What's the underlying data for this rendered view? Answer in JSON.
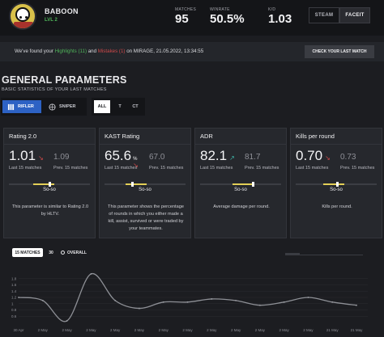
{
  "header": {
    "username": "BABOON",
    "level": "LVL 2",
    "stats": [
      {
        "label": "MATCHES",
        "value": "95"
      },
      {
        "label": "WINRATE",
        "value": "50.5%"
      },
      {
        "label": "K/D",
        "value": "1.03"
      }
    ],
    "steam_label": "STEAM",
    "faceit_label": "FACEIT"
  },
  "notice": {
    "prefix": "We've found your ",
    "highlights": "Highlights (11)",
    "and": " and ",
    "mistakes": "Mistakes (1)",
    "suffix": " on MIRAGE, 21.05.2022, 13:34:55",
    "button": "CHECK YOUR LAST MATCH"
  },
  "section": {
    "title": "GENERAL PARAMETERS",
    "subtitle": "BASIC STATISTICS OF YOUR LAST MATCHES"
  },
  "filters": {
    "roles": [
      {
        "label": "RIFLER",
        "icon": "rifle-icon"
      },
      {
        "label": "SNIPER",
        "icon": "scope-icon"
      }
    ],
    "sides": [
      "ALL",
      "T",
      "CT"
    ]
  },
  "cards": [
    {
      "title": "Rating 2.0",
      "value": "1.01",
      "trend": "down",
      "prev": "1.09",
      "cur_label": "Last 15 matches",
      "prev_label": "Prev. 15 matches",
      "level": "So-so",
      "desc": "This parameter is similar to Rating 2.0 by HLTV."
    },
    {
      "title": "KAST Rating",
      "value": "65.6",
      "unit": "%",
      "trend": "down",
      "prev": "67.0",
      "cur_label": "Last 15 matches",
      "prev_label": "Prev. 15 matches",
      "level": "So-so",
      "desc": "This parameter shows the percentage of rounds in which you either made a kill, assist, survived or were traded by your teammates."
    },
    {
      "title": "ADR",
      "value": "82.1",
      "trend": "up",
      "prev": "81.7",
      "cur_label": "Last 15 matches",
      "prev_label": "Prev. 15 matches",
      "level": "So-so",
      "desc": "Average damage per round."
    },
    {
      "title": "Kills per round",
      "value": "0.70",
      "trend": "down",
      "prev": "0.73",
      "cur_label": "Last 15 matches",
      "prev_label": "Prev. 15 matches",
      "level": "So-so",
      "desc": "Kills per round."
    }
  ],
  "chart_tabs": {
    "t15": "15 MATCHES",
    "t30": "30",
    "overall": "OVERALL"
  },
  "chart_data": {
    "type": "line",
    "x": [
      "30 Apr",
      "2 May",
      "2 May",
      "2 May",
      "2 May",
      "2 May",
      "2 May",
      "2 May",
      "2 May",
      "2 May",
      "2 May",
      "2 May",
      "2 May",
      "21 May",
      "21 May"
    ],
    "y": [
      1.2,
      1.1,
      0.45,
      1.95,
      1.1,
      0.85,
      1.05,
      1.05,
      1.15,
      1.1,
      0.95,
      1.05,
      1.2,
      1.05,
      0.95
    ],
    "yticks": [
      "0.6",
      "0.8",
      "1",
      "1.2",
      "1.4",
      "1.6",
      "1.8"
    ],
    "ylim": [
      0.4,
      2.0
    ],
    "grid": true
  },
  "colors": {
    "accent_blue": "#2d62c4",
    "green": "#4fb55a",
    "red": "#d0494a",
    "yellow": "#e3cf57",
    "teal": "#3fb6a8"
  }
}
